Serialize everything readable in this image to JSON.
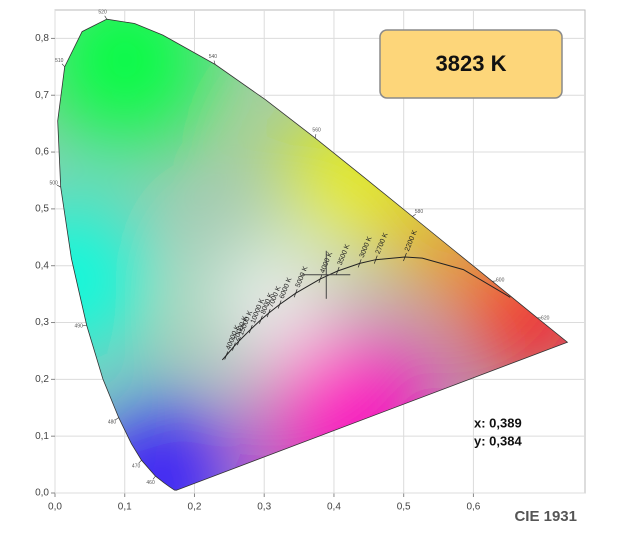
{
  "chart_data": {
    "type": "chromaticity",
    "title": "3823 K",
    "caption": "CIE 1931",
    "xlim": [
      0,
      0.76
    ],
    "ylim": [
      0,
      0.85
    ],
    "xticks": [
      {
        "value": 0,
        "label": "0,0"
      },
      {
        "value": 0.1,
        "label": "0,1"
      },
      {
        "value": 0.2,
        "label": "0,2"
      },
      {
        "value": 0.3,
        "label": "0,3"
      },
      {
        "value": 0.4,
        "label": "0,4"
      },
      {
        "value": 0.5,
        "label": "0,5"
      },
      {
        "value": 0.6,
        "label": "0,6"
      }
    ],
    "yticks": [
      {
        "value": 0,
        "label": "0,0"
      },
      {
        "value": 0.1,
        "label": "0,1"
      },
      {
        "value": 0.2,
        "label": "0,2"
      },
      {
        "value": 0.3,
        "label": "0,3"
      },
      {
        "value": 0.4,
        "label": "0,4"
      },
      {
        "value": 0.5,
        "label": "0,5"
      },
      {
        "value": 0.6,
        "label": "0,6"
      },
      {
        "value": 0.7,
        "label": "0,7"
      },
      {
        "value": 0.8,
        "label": "0,8"
      }
    ],
    "grid": true,
    "spectral_locus": {
      "x": [
        0.1741,
        0.1714,
        0.1644,
        0.1566,
        0.144,
        0.1241,
        0.1096,
        0.0913,
        0.0687,
        0.0454,
        0.0235,
        0.0082,
        0.0039,
        0.0139,
        0.0389,
        0.0743,
        0.1142,
        0.1547,
        0.2296,
        0.3016,
        0.3731,
        0.4441,
        0.5125,
        0.5752,
        0.627,
        0.6915,
        0.7347
      ],
      "y": [
        0.005,
        0.0051,
        0.0109,
        0.0177,
        0.0297,
        0.0578,
        0.0868,
        0.1327,
        0.2007,
        0.295,
        0.4127,
        0.5384,
        0.6548,
        0.7502,
        0.812,
        0.8338,
        0.8262,
        0.8059,
        0.7543,
        0.6923,
        0.6245,
        0.5547,
        0.4866,
        0.4242,
        0.3725,
        0.3083,
        0.2653
      ]
    },
    "wavelength_labels": [
      {
        "text": 460,
        "x": 0.144,
        "y": 0.0297
      },
      {
        "text": 470,
        "x": 0.1241,
        "y": 0.0578
      },
      {
        "text": 480,
        "x": 0.0913,
        "y": 0.1327
      },
      {
        "text": 490,
        "x": 0.0454,
        "y": 0.295
      },
      {
        "text": 500,
        "x": 0.0082,
        "y": 0.5384
      },
      {
        "text": 510,
        "x": 0.0139,
        "y": 0.7502
      },
      {
        "text": 520,
        "x": 0.0743,
        "y": 0.8338
      },
      {
        "text": 540,
        "x": 0.2296,
        "y": 0.7543
      },
      {
        "text": 560,
        "x": 0.3731,
        "y": 0.6245
      },
      {
        "text": 580,
        "x": 0.5125,
        "y": 0.4866
      },
      {
        "text": 600,
        "x": 0.627,
        "y": 0.3725
      },
      {
        "text": 620,
        "x": 0.6915,
        "y": 0.3083
      }
    ],
    "planckian_locus": {
      "x": [
        0.2399,
        0.2455,
        0.2565,
        0.2637,
        0.2807,
        0.2952,
        0.3064,
        0.3221,
        0.3451,
        0.3805,
        0.4053,
        0.4369,
        0.4599,
        0.5018,
        0.5267,
        0.5857,
        0.6528
      ],
      "y": [
        0.2342,
        0.2419,
        0.2577,
        0.2673,
        0.2883,
        0.3048,
        0.3166,
        0.3318,
        0.3516,
        0.3768,
        0.3907,
        0.4041,
        0.4106,
        0.4153,
        0.4133,
        0.3931,
        0.3444
      ]
    },
    "cct_labels": [
      {
        "label": "40000 K",
        "x": 0.2455,
        "y": 0.2419
      },
      {
        "label": "20000 K",
        "x": 0.2565,
        "y": 0.2577
      },
      {
        "label": "15000 K",
        "x": 0.2637,
        "y": 0.2673
      },
      {
        "label": "10000 K",
        "x": 0.2807,
        "y": 0.2883
      },
      {
        "label": "8000 K",
        "x": 0.2952,
        "y": 0.3048
      },
      {
        "label": "7000 K",
        "x": 0.3064,
        "y": 0.3166
      },
      {
        "label": "6000 K",
        "x": 0.3221,
        "y": 0.3318
      },
      {
        "label": "5000 K",
        "x": 0.3451,
        "y": 0.3516
      },
      {
        "label": "4000 K",
        "x": 0.3805,
        "y": 0.3768
      },
      {
        "label": "3500 K",
        "x": 0.4053,
        "y": 0.3907
      },
      {
        "label": "3000 K",
        "x": 0.4369,
        "y": 0.4041
      },
      {
        "label": "2700 K",
        "x": 0.4599,
        "y": 0.4106
      },
      {
        "label": "2200 K",
        "x": 0.5018,
        "y": 0.4153
      }
    ],
    "point": {
      "x": 0.389,
      "y": 0.384,
      "labels": [
        "x: 0,389",
        "y: 0,384"
      ]
    }
  }
}
